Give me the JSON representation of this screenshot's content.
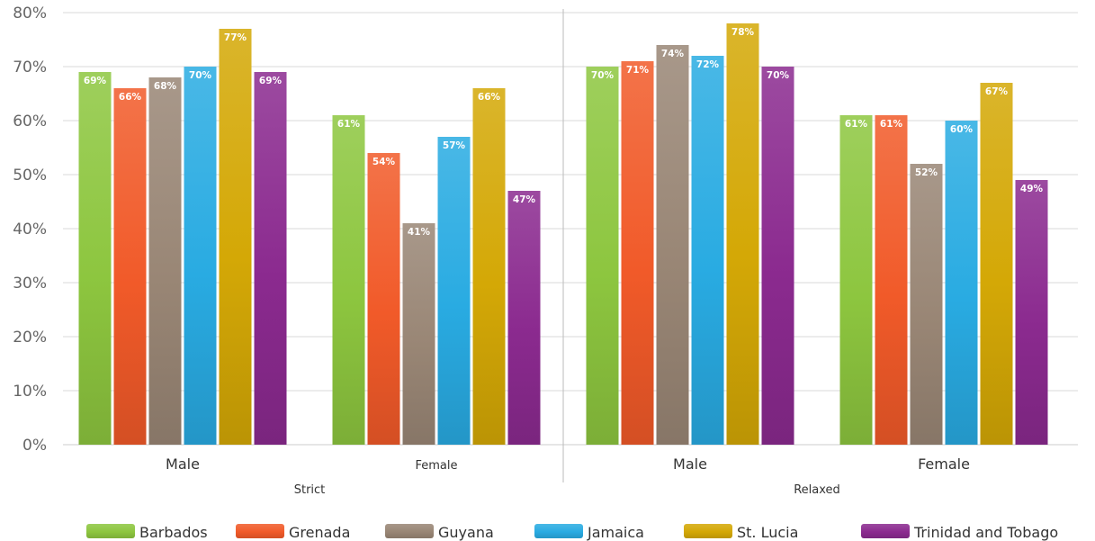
{
  "chart_data": {
    "type": "bar",
    "title": "",
    "ylim": [
      0,
      80
    ],
    "yticks": [
      "0%",
      "10%",
      "20%",
      "30%",
      "40%",
      "50%",
      "60%",
      "70%",
      "80%"
    ],
    "groups": [
      {
        "name": "Strict",
        "categories": [
          "Male",
          "Female"
        ]
      },
      {
        "name": "Relaxed",
        "categories": [
          "Male",
          "Female"
        ]
      }
    ],
    "series": [
      {
        "name": "Barbados",
        "color": "#8dc63f",
        "values": [
          69,
          61,
          70,
          61
        ]
      },
      {
        "name": "Grenada",
        "color": "#f15a29",
        "values": [
          66,
          54,
          71,
          61
        ]
      },
      {
        "name": "Guyana",
        "color": "#998675",
        "values": [
          68,
          41,
          74,
          52
        ]
      },
      {
        "name": "Jamaica",
        "color": "#29abe2",
        "values": [
          70,
          57,
          72,
          60
        ]
      },
      {
        "name": "St. Lucia",
        "color": "#d4a806",
        "values": [
          77,
          66,
          78,
          67
        ]
      },
      {
        "name": "Trinidad and Tobago",
        "color": "#8b2a8f",
        "values": [
          69,
          47,
          70,
          49
        ]
      }
    ],
    "value_suffix": "%",
    "grid": true,
    "legend_position": "bottom"
  }
}
